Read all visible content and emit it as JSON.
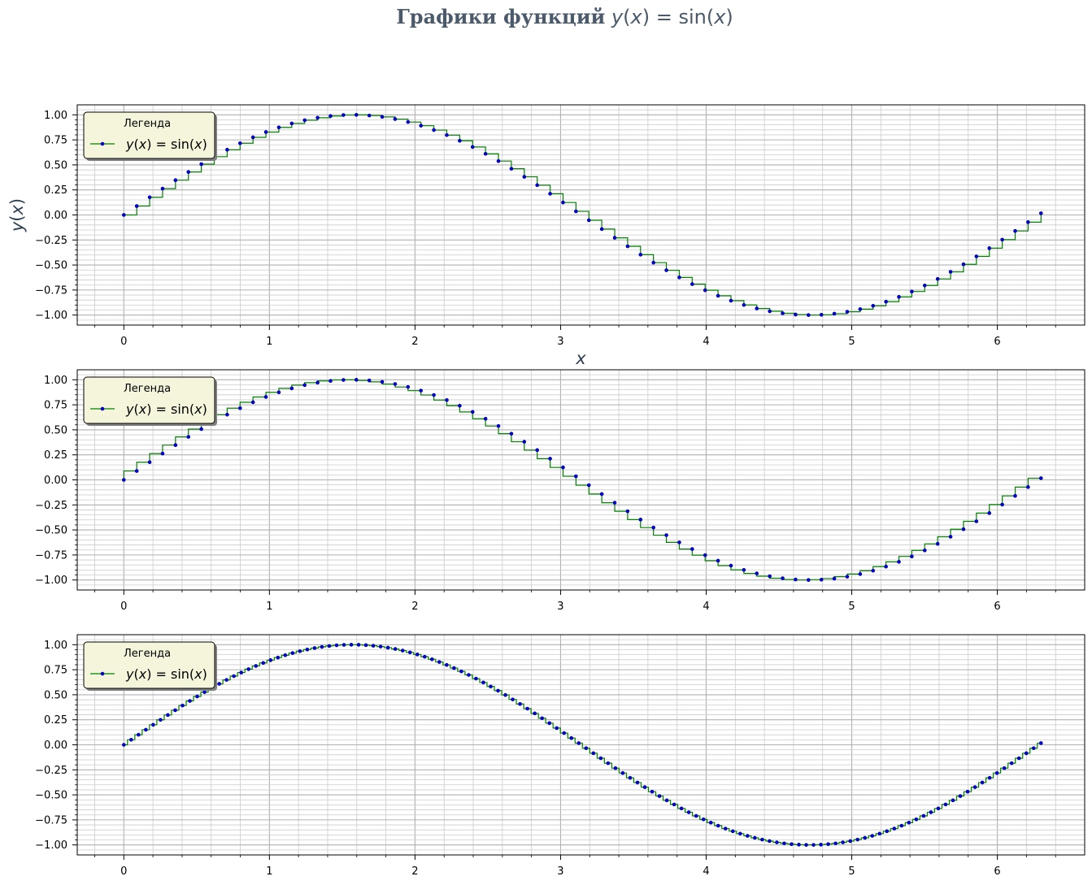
{
  "title": {
    "prefix": "Графики функций",
    "formula": "y(x) = sin(x)",
    "color": "#4a5a6a"
  },
  "colors": {
    "line": "#008000",
    "marker_face": "#0000ff",
    "marker_edge": "#000080",
    "legend_bg": "#f5f5dc",
    "grid_major": "#b0b0b0",
    "grid_minor": "#cccccc"
  },
  "chart_data": [
    {
      "type": "line",
      "drawstyle": "steps-post",
      "step_count": 72,
      "title": "",
      "xlabel": "x",
      "ylabel": "y(x)",
      "xlim": [
        -0.32,
        6.6
      ],
      "ylim": [
        -1.1,
        1.1
      ],
      "xticks": [
        "0",
        "1",
        "2",
        "3",
        "4",
        "5",
        "6"
      ],
      "yticks": [
        "1.00",
        "0.75",
        "0.50",
        "0.25",
        "0.00",
        "−0.25",
        "−0.50",
        "−0.75",
        "−1.00"
      ],
      "grid": true,
      "legend": {
        "title": "Легенда",
        "label": "y(x) = sin(x)",
        "position": "upper-left"
      },
      "series": [
        {
          "function": "sin(x)",
          "x_start": 0,
          "x_end": 6.3
        }
      ]
    },
    {
      "type": "line",
      "drawstyle": "steps-pre",
      "step_count": 72,
      "title": "",
      "xlabel": "",
      "ylabel": "",
      "xlim": [
        -0.32,
        6.6
      ],
      "ylim": [
        -1.1,
        1.1
      ],
      "xticks": [
        "0",
        "1",
        "2",
        "3",
        "4",
        "5",
        "6"
      ],
      "yticks": [
        "1.00",
        "0.75",
        "0.50",
        "0.25",
        "0.00",
        "−0.25",
        "−0.50",
        "−0.75",
        "−1.00"
      ],
      "grid": true,
      "legend": {
        "title": "Легенда",
        "label": "y(x) = sin(x)",
        "position": "upper-left"
      },
      "series": [
        {
          "function": "sin(x)",
          "x_start": 0,
          "x_end": 6.3
        }
      ]
    },
    {
      "type": "line",
      "drawstyle": "steps-mid",
      "step_count": 126,
      "title": "",
      "xlabel": "",
      "ylabel": "",
      "xlim": [
        -0.32,
        6.6
      ],
      "ylim": [
        -1.1,
        1.1
      ],
      "xticks": [
        "0",
        "1",
        "2",
        "3",
        "4",
        "5",
        "6"
      ],
      "yticks": [
        "1.00",
        "0.75",
        "0.50",
        "0.25",
        "0.00",
        "−0.25",
        "−0.50",
        "−0.75",
        "−1.00"
      ],
      "grid": true,
      "legend": {
        "title": "Легенда",
        "label": "y(x) = sin(x)",
        "position": "upper-left"
      },
      "series": [
        {
          "function": "sin(x)",
          "x_start": 0,
          "x_end": 6.3
        }
      ]
    }
  ]
}
